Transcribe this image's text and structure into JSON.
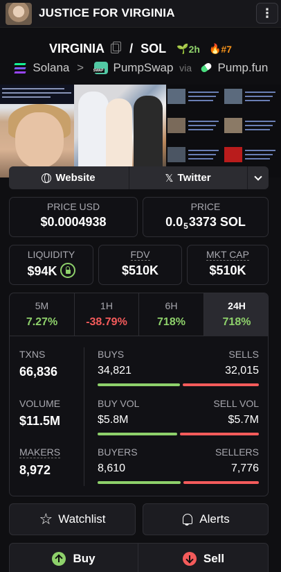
{
  "header": {
    "title": "JUSTICE FOR VIRGINIA",
    "menu_icon": "more-vertical-icon"
  },
  "pair": {
    "base": "VIRGINIA",
    "separator": "/",
    "quote": "SOL",
    "age": "2h",
    "rank": "#7"
  },
  "route": {
    "chain": "Solana",
    "arrow": ">",
    "dex": "PumpSwap",
    "via": "via",
    "launchpad": "Pump.fun"
  },
  "links": {
    "website": "Website",
    "twitter": "Twitter"
  },
  "prices": {
    "price_usd_label": "PRICE USD",
    "price_usd": "$0.0004938",
    "price_label": "PRICE",
    "price_prefix": "0.0",
    "price_zeros": "5",
    "price_digits": "3373 SOL"
  },
  "caps": {
    "liquidity_label": "LIQUIDITY",
    "liquidity": "$94K",
    "fdv_label": "FDV",
    "fdv": "$510K",
    "mktcap_label": "MKT CAP",
    "mktcap": "$510K"
  },
  "tabs": [
    {
      "label": "5M",
      "value": "7.27%"
    },
    {
      "label": "1H",
      "value": "-38.79%"
    },
    {
      "label": "6H",
      "value": "718%"
    },
    {
      "label": "24H",
      "value": "718%"
    }
  ],
  "stats": {
    "txns_label": "TXNS",
    "txns": "66,836",
    "buys_label": "BUYS",
    "buys": "34,821",
    "sells_label": "SELLS",
    "sells": "32,015",
    "buys_share": 0.52,
    "volume_label": "VOLUME",
    "volume": "$11.5M",
    "buyvol_label": "BUY VOL",
    "buyvol": "$5.8M",
    "sellvol_label": "SELL VOL",
    "sellvol": "$5.7M",
    "buyvol_share": 0.5,
    "makers_label": "MAKERS",
    "makers": "8,972",
    "buyers_label": "BUYERS",
    "buyers": "8,610",
    "sellers_label": "SELLERS",
    "sellers": "7,776",
    "buyers_share": 0.525
  },
  "actions": {
    "watchlist": "Watchlist",
    "alerts": "Alerts"
  },
  "trade": {
    "buy": "Buy",
    "sell": "Sell"
  },
  "colors": {
    "green": "#8ed16b",
    "red": "#f45b5b",
    "orange": "#f7931a"
  }
}
